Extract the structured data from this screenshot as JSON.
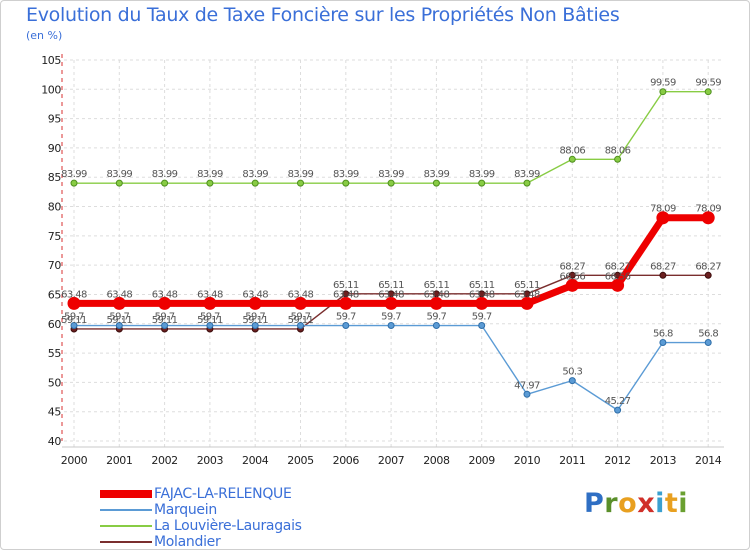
{
  "title": "Evolution du Taux de Taxe Foncière sur les Propriétés Non Bâties",
  "unit": "(en %)",
  "brand": "Proxiti",
  "chart_data": {
    "type": "line",
    "title": "Evolution du Taux de Taxe Foncière sur les Propriétés Non Bâties",
    "ylabel": "(en %)",
    "xlabel": "",
    "ylim": [
      40,
      105
    ],
    "yticks": [
      40,
      45,
      50,
      55,
      60,
      65,
      70,
      75,
      80,
      85,
      90,
      95,
      100,
      105
    ],
    "categories": [
      "2000",
      "2001",
      "2002",
      "2003",
      "2004",
      "2005",
      "2006",
      "2007",
      "2008",
      "2009",
      "2010",
      "2011",
      "2012",
      "2013",
      "2014"
    ],
    "legend_position": "bottom-left",
    "series": [
      {
        "name": "FAJAC-LA-RELENQUE",
        "color": "#ee0000",
        "values": [
          63.48,
          63.48,
          63.48,
          63.48,
          63.48,
          63.48,
          63.48,
          63.48,
          63.48,
          63.48,
          63.48,
          66.56,
          66.56,
          78.09,
          78.09
        ],
        "labels": [
          "63.48",
          "63.48",
          "63.48",
          "63.48",
          "63.48",
          "63.48",
          "63.48",
          "63.48",
          "63.48",
          "63.48",
          "63.48",
          "66.56",
          "66.56",
          "78.09",
          "78.09"
        ]
      },
      {
        "name": "Marquein",
        "color": "#5b9bd5",
        "values": [
          59.7,
          59.7,
          59.7,
          59.7,
          59.7,
          59.7,
          59.7,
          59.7,
          59.7,
          59.7,
          47.97,
          50.3,
          45.27,
          56.8,
          56.8
        ],
        "labels": [
          "59.7",
          "59.7",
          "59.7",
          "59.7",
          "59.7",
          "59.7",
          "59.7",
          "59.7",
          "59.7",
          "59.7",
          "47.97",
          "50.3",
          "45.27",
          "56.8",
          "56.8"
        ]
      },
      {
        "name": "La Louvière-Lauragais",
        "color": "#88cc44",
        "values": [
          83.99,
          83.99,
          83.99,
          83.99,
          83.99,
          83.99,
          83.99,
          83.99,
          83.99,
          83.99,
          83.99,
          88.06,
          88.06,
          99.59,
          99.59
        ],
        "labels": [
          "83.99",
          "83.99",
          "83.99",
          "83.99",
          "83.99",
          "83.99",
          "83.99",
          "83.99",
          "83.99",
          "83.99",
          "83.99",
          "88.06",
          "88.06",
          "99.59",
          "99.59"
        ]
      },
      {
        "name": "Molandier",
        "color": "#7a2e2e",
        "values": [
          59.11,
          59.11,
          59.11,
          59.11,
          59.11,
          59.11,
          65.11,
          65.11,
          65.11,
          65.11,
          65.11,
          68.27,
          68.27,
          68.27,
          68.27
        ],
        "labels": [
          "59.11",
          "59.11",
          "59.11",
          "59.11",
          "59.11",
          "59.11",
          "65.11",
          "65.11",
          "65.11",
          "65.11",
          "65.11",
          "68.27",
          "68.27",
          "68.27",
          "68.27"
        ]
      }
    ]
  }
}
